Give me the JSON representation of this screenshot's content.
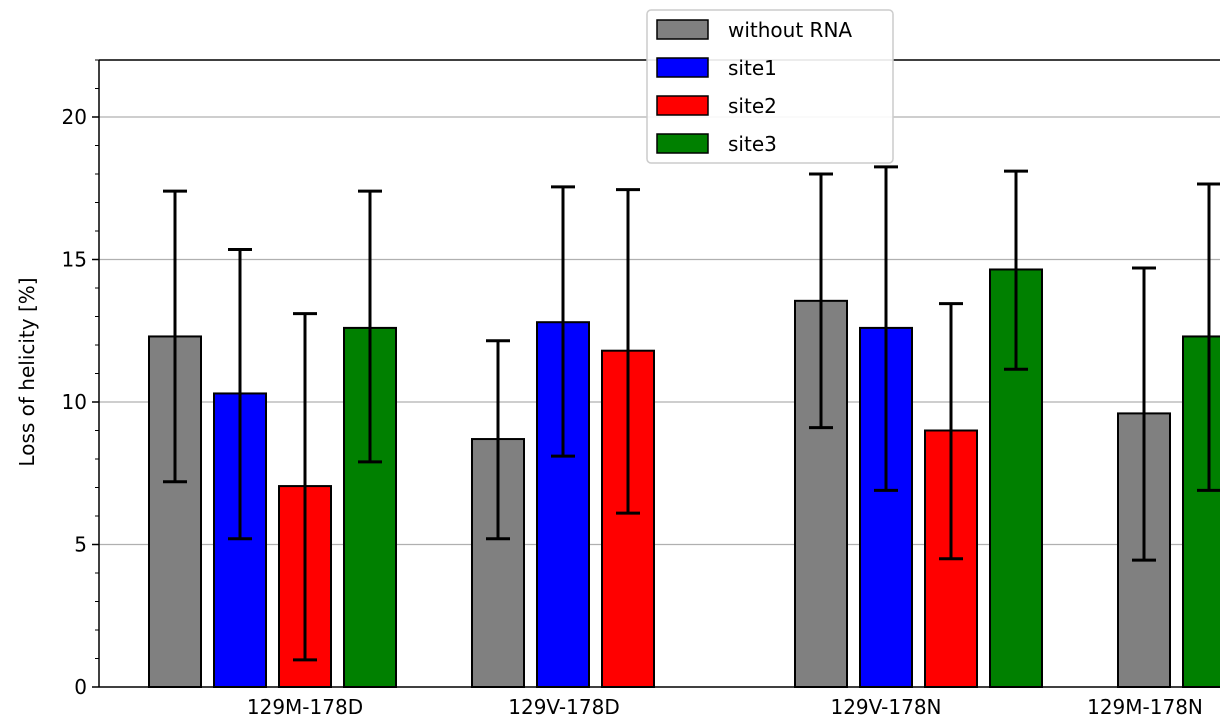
{
  "chart_data": {
    "type": "bar",
    "title": "",
    "xlabel": "",
    "ylabel": "Loss of helicity [%]",
    "ylim": [
      0,
      22
    ],
    "yticks": [
      0,
      5,
      10,
      15,
      20
    ],
    "ygrid": true,
    "legend_position": "top-center",
    "groups": [
      "129M-178D",
      "129V-178D",
      "129V-178N",
      "129M-178N"
    ],
    "series": [
      {
        "name": "without RNA",
        "color": "#808080",
        "values": [
          12.3,
          8.7,
          13.55,
          9.6
        ],
        "error_low": [
          7.2,
          5.2,
          9.1,
          4.45
        ],
        "error_high": [
          17.4,
          12.15,
          18.0,
          14.7
        ]
      },
      {
        "name": "site1",
        "color": "#0000ff",
        "values": [
          10.3,
          12.8,
          12.6,
          null
        ],
        "error_low": [
          5.2,
          8.1,
          6.9,
          null
        ],
        "error_high": [
          15.35,
          17.55,
          18.25,
          null
        ]
      },
      {
        "name": "site2",
        "color": "#ff0000",
        "values": [
          7.05,
          11.8,
          9.0,
          null
        ],
        "error_low": [
          0.95,
          6.1,
          4.5,
          null
        ],
        "error_high": [
          13.1,
          17.45,
          13.45,
          null
        ]
      },
      {
        "name": "site3",
        "color": "#008000",
        "values": [
          12.6,
          null,
          14.65,
          12.3
        ],
        "error_low": [
          7.9,
          null,
          11.15,
          6.9
        ],
        "error_high": [
          17.4,
          null,
          18.1,
          17.65
        ]
      }
    ]
  }
}
